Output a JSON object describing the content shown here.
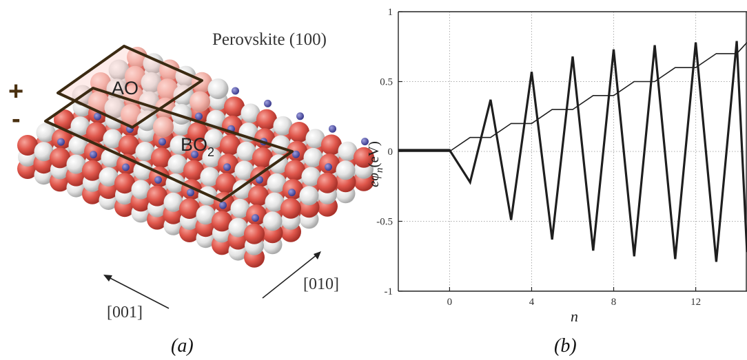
{
  "panel_a": {
    "title": "Perovskite (100)",
    "layer_top": "AO",
    "layer_bottom": "BO",
    "layer_bottom_sub": "2",
    "sign_plus": "+",
    "sign_minus": "-",
    "dir_left": "[001]",
    "dir_right": "[010]",
    "caption": "(a)",
    "colors": {
      "oxygen": "#e0574c",
      "a_cation": "#dcdcdc",
      "b_cation": "#5a5ab0",
      "outline": "#3b2a12"
    }
  },
  "panel_b": {
    "caption": "(b)"
  },
  "chart_data": {
    "type": "line",
    "xlabel": "n",
    "ylabel": "eφ_n (eV)",
    "ylabel_main": "eφ",
    "ylabel_sub": "n",
    "ylabel_unit": "(eV)",
    "xlim": [
      -2.5,
      14.5
    ],
    "ylim": [
      -1,
      1
    ],
    "xticks": [
      0,
      4,
      8,
      12
    ],
    "yticks": [
      1,
      0.5,
      0,
      -0.5,
      -1
    ],
    "ytick_labels": [
      "1",
      "0.5",
      "0",
      "-0.5",
      "-1"
    ],
    "grid": true,
    "series": [
      {
        "x": [
          -2.5,
          0,
          1,
          2,
          3,
          4,
          5,
          6,
          7,
          8,
          9,
          10,
          11,
          12,
          13,
          14,
          14.5
        ],
        "y": [
          0.01,
          0.01,
          -0.22,
          0.37,
          -0.49,
          0.57,
          -0.63,
          0.68,
          -0.71,
          0.73,
          -0.75,
          0.76,
          -0.77,
          0.78,
          -0.79,
          0.79,
          -0.72
        ]
      },
      {
        "x": [
          -2.5,
          0,
          0,
          1,
          2,
          3,
          4,
          5,
          6,
          7,
          8,
          9,
          10,
          11,
          12,
          13,
          14,
          14.5
        ],
        "y": [
          0.0,
          0.0,
          0.0,
          0.1,
          0.1,
          0.2,
          0.2,
          0.3,
          0.3,
          0.4,
          0.4,
          0.5,
          0.5,
          0.6,
          0.6,
          0.7,
          0.7,
          0.78
        ]
      }
    ]
  }
}
